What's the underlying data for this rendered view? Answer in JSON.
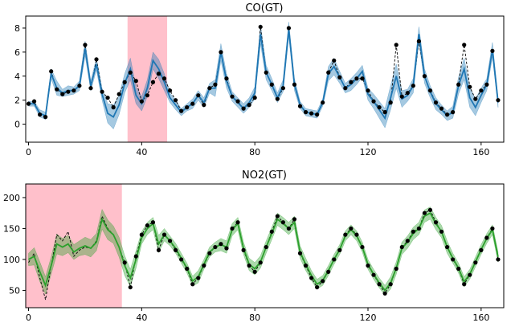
{
  "chart_data": [
    {
      "type": "line",
      "title": "CO(GT)",
      "xlim": [
        -1,
        168
      ],
      "ylim": [
        -1.5,
        9
      ],
      "xticks": [
        0,
        40,
        80,
        120,
        160
      ],
      "yticks": [
        0,
        2,
        4,
        6,
        8
      ],
      "highlight": {
        "x0": 35,
        "x1": 49,
        "color": "#ffc0cb"
      },
      "line_color": "#1f77b4",
      "band_color": "#1f77b4",
      "x": [
        0,
        2,
        4,
        6,
        8,
        10,
        12,
        14,
        16,
        18,
        20,
        22,
        24,
        26,
        28,
        30,
        32,
        34,
        36,
        38,
        40,
        42,
        44,
        46,
        48,
        50,
        52,
        54,
        56,
        58,
        60,
        62,
        64,
        66,
        68,
        70,
        72,
        74,
        76,
        78,
        80,
        82,
        84,
        86,
        88,
        90,
        92,
        94,
        96,
        98,
        100,
        102,
        104,
        106,
        108,
        110,
        112,
        114,
        116,
        118,
        120,
        122,
        124,
        126,
        128,
        130,
        132,
        134,
        136,
        138,
        140,
        142,
        144,
        146,
        148,
        150,
        152,
        154,
        156,
        158,
        160,
        162,
        164,
        166
      ],
      "truth": [
        1.7,
        1.9,
        0.8,
        0.6,
        4.4,
        2.9,
        2.5,
        2.7,
        2.8,
        3.2,
        6.6,
        3.0,
        5.4,
        2.7,
        2.2,
        1.4,
        2.5,
        3.5,
        4.3,
        3.6,
        1.9,
        2.4,
        3.5,
        4.2,
        3.8,
        2.8,
        2.0,
        1.1,
        1.4,
        1.7,
        2.4,
        1.6,
        3.0,
        3.3,
        6.0,
        3.8,
        2.3,
        1.9,
        1.3,
        1.6,
        2.2,
        8.1,
        4.3,
        3.3,
        2.1,
        3.0,
        8.0,
        3.3,
        1.5,
        1.0,
        0.9,
        0.8,
        1.8,
        4.3,
        5.3,
        3.9,
        3.0,
        3.5,
        3.8,
        3.8,
        2.8,
        1.9,
        1.4,
        1.0,
        1.8,
        6.6,
        2.3,
        2.6,
        3.2,
        6.9,
        4.0,
        2.8,
        1.8,
        1.3,
        0.8,
        1.0,
        3.3,
        6.6,
        3.1,
        2.1,
        2.8,
        3.3,
        6.1,
        2.0
      ],
      "mean": [
        1.7,
        1.7,
        0.9,
        0.7,
        4.2,
        3.0,
        2.6,
        2.8,
        2.8,
        3.2,
        6.3,
        3.2,
        5.0,
        2.5,
        0.9,
        0.6,
        1.6,
        3.4,
        4.6,
        2.4,
        1.7,
        3.0,
        5.3,
        4.6,
        3.5,
        2.2,
        1.6,
        1.0,
        1.4,
        1.7,
        2.4,
        1.8,
        3.0,
        3.0,
        6.0,
        3.6,
        2.3,
        1.8,
        1.3,
        1.8,
        2.6,
        7.5,
        4.3,
        3.3,
        2.2,
        3.2,
        7.9,
        3.3,
        1.6,
        1.0,
        0.9,
        0.8,
        1.8,
        4.2,
        4.8,
        3.9,
        3.0,
        3.3,
        3.8,
        4.4,
        2.5,
        1.9,
        1.2,
        0.5,
        2.2,
        4.0,
        2.1,
        2.4,
        3.2,
        7.5,
        4.0,
        2.7,
        1.7,
        1.2,
        0.7,
        1.0,
        3.2,
        4.6,
        2.2,
        1.4,
        2.4,
        3.3,
        6.2,
        1.8
      ],
      "band_width": [
        0.2,
        0.2,
        0.3,
        0.3,
        0.4,
        0.6,
        0.3,
        0.4,
        0.3,
        0.4,
        0.6,
        0.4,
        0.5,
        0.5,
        0.8,
        1.0,
        0.8,
        0.8,
        0.9,
        0.7,
        0.6,
        0.7,
        0.7,
        0.8,
        0.7,
        0.4,
        0.4,
        0.3,
        0.3,
        0.4,
        0.4,
        0.4,
        0.4,
        0.7,
        0.7,
        0.6,
        0.4,
        0.4,
        0.4,
        0.4,
        0.5,
        0.8,
        0.6,
        0.5,
        0.4,
        0.5,
        0.6,
        0.5,
        0.3,
        0.3,
        0.3,
        0.3,
        0.3,
        0.6,
        0.7,
        0.5,
        0.4,
        0.5,
        0.5,
        0.5,
        0.5,
        0.6,
        0.7,
        0.8,
        1.0,
        1.0,
        0.7,
        0.5,
        0.6,
        0.6,
        0.6,
        0.5,
        0.5,
        0.4,
        0.4,
        0.5,
        0.7,
        0.9,
        0.8,
        0.7,
        0.6,
        0.5,
        0.6,
        0.4
      ],
      "markers": [
        0,
        2,
        4,
        6,
        8,
        10,
        12,
        14,
        16,
        18,
        20,
        22,
        24,
        26,
        28,
        30,
        32,
        34,
        36,
        38,
        40,
        42,
        44,
        46,
        48,
        50,
        52,
        54,
        56,
        58,
        60,
        62,
        64,
        66,
        68,
        70,
        72,
        74,
        76,
        78,
        80,
        82,
        84,
        86,
        88,
        90,
        92,
        94,
        96,
        98,
        100,
        102,
        104,
        106,
        108,
        110,
        112,
        114,
        116,
        118,
        120,
        122,
        124,
        126,
        128,
        130,
        132,
        134,
        136,
        138,
        140,
        142,
        144,
        146,
        148,
        150,
        152,
        154,
        156,
        158,
        160,
        162,
        164,
        166
      ]
    },
    {
      "type": "line",
      "title": "NO2(GT)",
      "xlim": [
        -1,
        168
      ],
      "ylim": [
        22,
        222
      ],
      "xticks": [
        0,
        40,
        80,
        120,
        160
      ],
      "yticks": [
        50,
        100,
        150,
        200
      ],
      "highlight": {
        "x0": -1,
        "x1": 33,
        "color": "#ffc0cb"
      },
      "line_color": "#2ca02c",
      "band_color": "#2ca02c",
      "x": [
        0,
        2,
        4,
        6,
        8,
        10,
        12,
        14,
        16,
        18,
        20,
        22,
        24,
        26,
        28,
        30,
        32,
        34,
        36,
        38,
        40,
        42,
        44,
        46,
        48,
        50,
        52,
        54,
        56,
        58,
        60,
        62,
        64,
        66,
        68,
        70,
        72,
        74,
        76,
        78,
        80,
        82,
        84,
        86,
        88,
        90,
        92,
        94,
        96,
        98,
        100,
        102,
        104,
        106,
        108,
        110,
        112,
        114,
        116,
        118,
        120,
        122,
        124,
        126,
        128,
        130,
        132,
        134,
        136,
        138,
        140,
        142,
        144,
        146,
        148,
        150,
        152,
        154,
        156,
        158,
        160,
        162,
        164,
        166
      ],
      "truth": [
        95,
        110,
        70,
        35,
        90,
        140,
        130,
        145,
        105,
        115,
        120,
        118,
        130,
        170,
        150,
        140,
        120,
        95,
        55,
        105,
        140,
        155,
        160,
        115,
        140,
        130,
        115,
        100,
        85,
        60,
        70,
        90,
        110,
        120,
        125,
        118,
        150,
        160,
        115,
        90,
        80,
        95,
        120,
        145,
        170,
        160,
        150,
        165,
        110,
        90,
        70,
        55,
        65,
        80,
        100,
        115,
        140,
        150,
        140,
        120,
        90,
        75,
        60,
        45,
        60,
        85,
        120,
        130,
        145,
        150,
        175,
        180,
        160,
        145,
        120,
        100,
        85,
        60,
        75,
        95,
        115,
        135,
        150,
        100
      ],
      "mean": [
        100,
        105,
        80,
        58,
        90,
        125,
        120,
        125,
        112,
        118,
        122,
        118,
        128,
        165,
        148,
        140,
        120,
        90,
        70,
        100,
        135,
        150,
        158,
        125,
        140,
        130,
        118,
        102,
        86,
        65,
        72,
        92,
        112,
        120,
        124,
        120,
        148,
        158,
        118,
        92,
        85,
        96,
        120,
        142,
        165,
        158,
        150,
        160,
        112,
        92,
        74,
        60,
        66,
        82,
        100,
        116,
        138,
        148,
        138,
        120,
        92,
        76,
        62,
        50,
        62,
        86,
        118,
        128,
        142,
        150,
        170,
        175,
        158,
        145,
        120,
        102,
        86,
        64,
        76,
        96,
        116,
        134,
        148,
        104
      ],
      "band_width": [
        10,
        14,
        16,
        14,
        14,
        16,
        14,
        14,
        12,
        12,
        14,
        14,
        14,
        16,
        16,
        14,
        16,
        16,
        14,
        14,
        10,
        10,
        10,
        14,
        10,
        8,
        8,
        8,
        8,
        8,
        10,
        8,
        8,
        8,
        10,
        10,
        10,
        10,
        10,
        10,
        10,
        10,
        10,
        10,
        10,
        10,
        10,
        10,
        10,
        10,
        8,
        8,
        8,
        8,
        8,
        8,
        8,
        8,
        8,
        8,
        8,
        8,
        8,
        8,
        10,
        10,
        10,
        10,
        10,
        10,
        10,
        10,
        10,
        10,
        10,
        8,
        8,
        8,
        8,
        8,
        8,
        8,
        8,
        8
      ],
      "markers": [
        34,
        36,
        38,
        40,
        42,
        44,
        46,
        48,
        50,
        52,
        54,
        56,
        58,
        60,
        62,
        64,
        66,
        68,
        70,
        72,
        74,
        76,
        78,
        80,
        82,
        84,
        86,
        88,
        90,
        92,
        94,
        96,
        98,
        100,
        102,
        104,
        106,
        108,
        110,
        112,
        114,
        116,
        118,
        120,
        122,
        124,
        126,
        128,
        130,
        132,
        134,
        136,
        138,
        140,
        142,
        144,
        146,
        148,
        150,
        152,
        154,
        156,
        158,
        160,
        162,
        164,
        166
      ]
    }
  ]
}
